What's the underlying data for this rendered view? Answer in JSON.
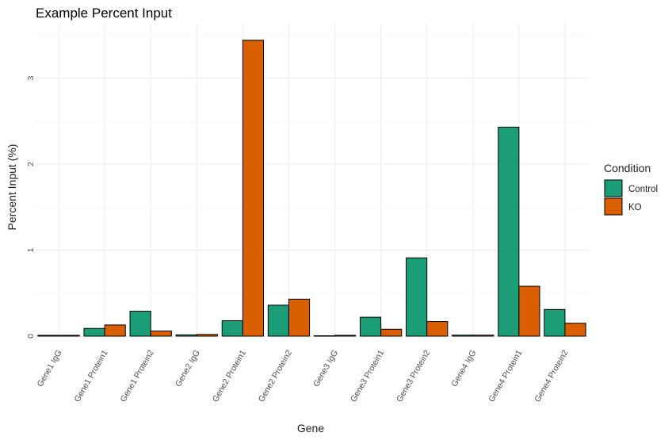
{
  "chart_data": {
    "type": "bar",
    "title": "Example Percent Input",
    "xlabel": "Gene",
    "ylabel": "Percent Input (%)",
    "categories": [
      "Gene1 IgG",
      "Gene1 Protein1",
      "Gene1 Protein2",
      "Gene2 IgG",
      "Gene2 Protein1",
      "Gene2 Protein2",
      "Gene3 IgG",
      "Gene3 Protein1",
      "Gene3 Protein2",
      "Gene4 IgG",
      "Gene4 Protein1",
      "Gene4 Protein2"
    ],
    "series": [
      {
        "name": "Control",
        "color": "#1b9e77",
        "values": [
          0.01,
          0.09,
          0.29,
          0.015,
          0.18,
          0.36,
          0.005,
          0.22,
          0.91,
          0.012,
          2.43,
          0.31
        ]
      },
      {
        "name": "KO",
        "color": "#d95f02",
        "values": [
          0.01,
          0.13,
          0.06,
          0.02,
          3.44,
          0.43,
          0.01,
          0.08,
          0.17,
          0.012,
          0.58,
          0.15
        ]
      }
    ],
    "ylim": [
      0,
      3.6
    ],
    "y_ticks": [
      "0",
      "1",
      "2",
      "3"
    ],
    "grid": true,
    "legend": {
      "title": "Condition",
      "position": "right"
    }
  }
}
